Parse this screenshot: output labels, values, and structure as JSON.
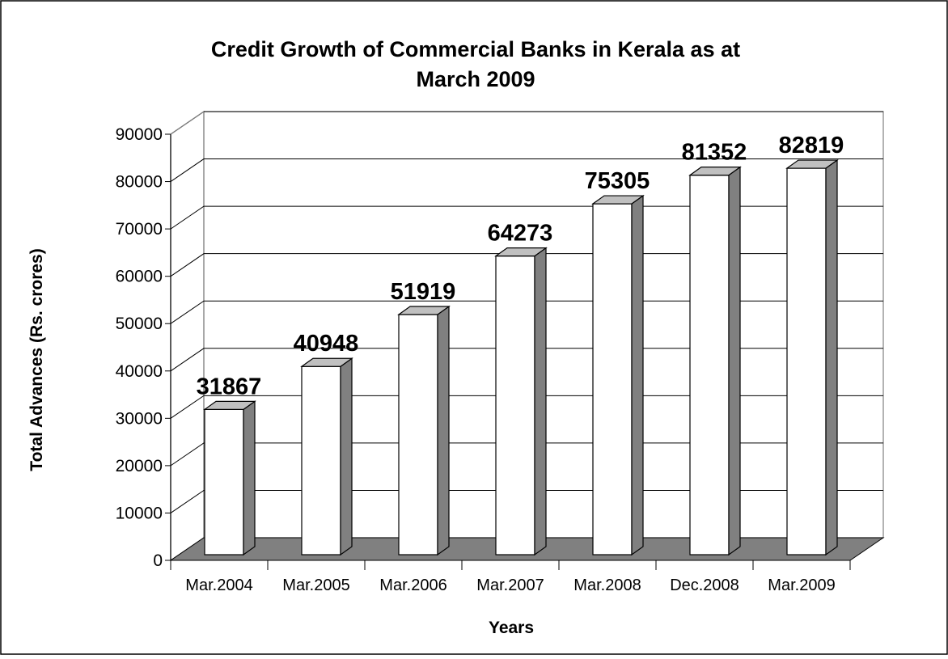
{
  "chart_data": {
    "type": "bar",
    "title": "Credit Growth of Commercial Banks in Kerala as at March 2009",
    "title_lines": [
      "Credit Growth of Commercial Banks in Kerala as at",
      "March 2009"
    ],
    "xlabel": "Years",
    "ylabel": "Total Advances (Rs. crores)",
    "categories": [
      "Mar.2004",
      "Mar.2005",
      "Mar.2006",
      "Mar.2007",
      "Mar.2008",
      "Dec.2008",
      "Mar.2009"
    ],
    "values": [
      31867,
      40948,
      51919,
      64273,
      75305,
      81352,
      82819
    ],
    "data_labels": [
      "31867",
      "40948",
      "51919",
      "64273",
      "75305",
      "81352",
      "82819"
    ],
    "yticks": [
      "0",
      "10000",
      "20000",
      "30000",
      "40000",
      "50000",
      "60000",
      "70000",
      "80000",
      "90000"
    ],
    "ylim": [
      0,
      90000
    ],
    "grid": true,
    "legend": "none",
    "style": "3d-column",
    "colors": {
      "bar_front": "#ffffff",
      "bar_side": "#808080",
      "bar_top": "#c0c0c0",
      "floor": "#808080",
      "gridline": "#000000",
      "border": "#000000"
    }
  }
}
